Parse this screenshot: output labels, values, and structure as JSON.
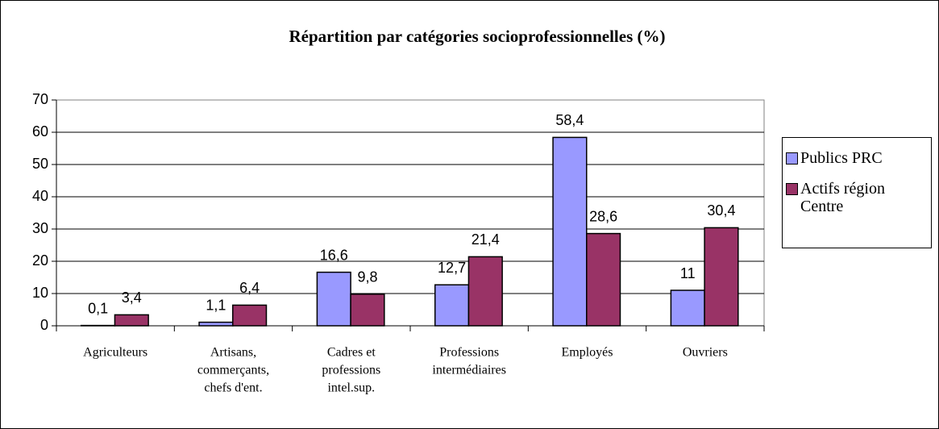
{
  "chart_data": {
    "type": "bar",
    "title": "Répartition par catégories socioprofessionnelles (%)",
    "categories": [
      [
        "Agriculteurs"
      ],
      [
        "Artisans,",
        "commerçants,",
        "chefs d'ent."
      ],
      [
        "Cadres et",
        "professions",
        "intel.sup."
      ],
      [
        "Professions",
        "intermédiaires"
      ],
      [
        "Employés"
      ],
      [
        "Ouvriers"
      ]
    ],
    "series": [
      {
        "name": "Publics PRC",
        "color": "#9999ff",
        "values": [
          0.1,
          1.1,
          16.6,
          12.7,
          58.4,
          11
        ],
        "value_labels": [
          "0,1",
          "1,1",
          "16,6",
          "12,7",
          "58,4",
          "11"
        ]
      },
      {
        "name": "Actifs région Centre",
        "color": "#993366",
        "values": [
          3.4,
          6.4,
          9.8,
          21.4,
          28.6,
          30.4
        ],
        "value_labels": [
          "3,4",
          "6,4",
          "9,8",
          "21,4",
          "28,6",
          "30,4"
        ]
      }
    ],
    "ylim": [
      0,
      70
    ],
    "yticks": [
      0,
      10,
      20,
      30,
      40,
      50,
      60,
      70
    ],
    "grid": true,
    "legend": "right"
  }
}
